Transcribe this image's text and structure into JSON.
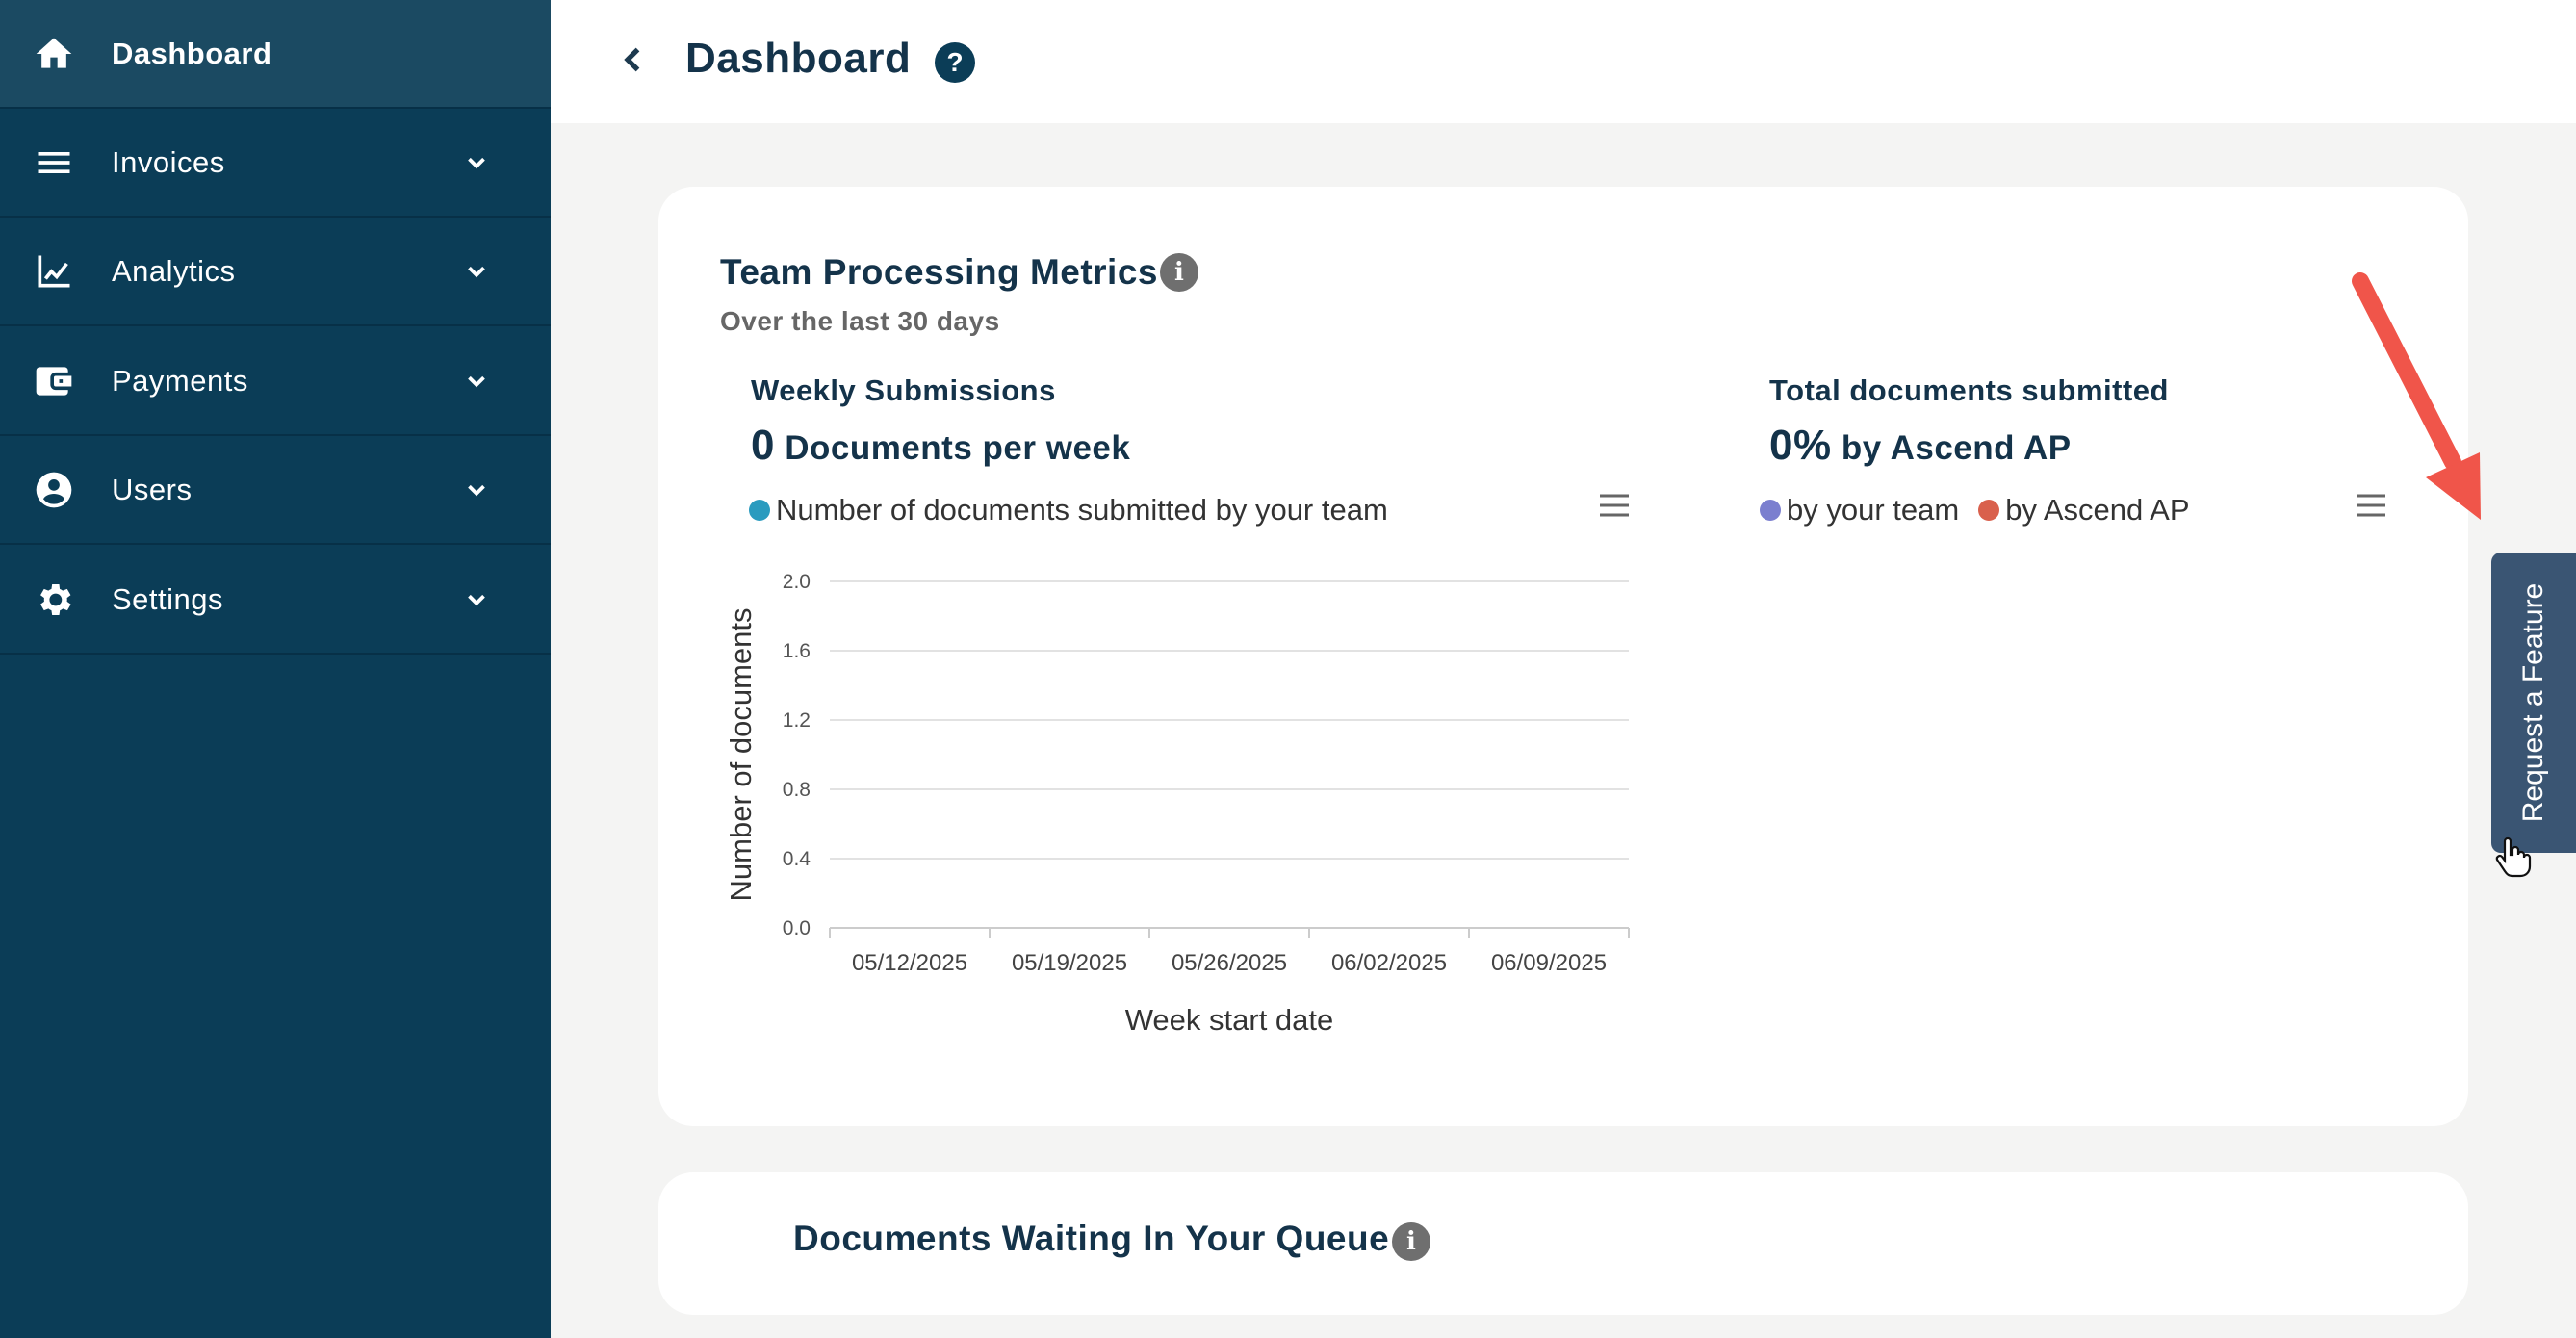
{
  "sidebar": {
    "items": [
      {
        "label": "Dashboard",
        "icon": "home-icon",
        "active": true
      },
      {
        "label": "Invoices",
        "icon": "list-icon"
      },
      {
        "label": "Analytics",
        "icon": "line-chart-icon"
      },
      {
        "label": "Payments",
        "icon": "wallet-icon"
      },
      {
        "label": "Users",
        "icon": "user-circle-icon"
      },
      {
        "label": "Settings",
        "icon": "gear-icon"
      }
    ]
  },
  "header": {
    "title": "Dashboard",
    "help": "?"
  },
  "metrics": {
    "title": "Team Processing Metrics",
    "info": "i",
    "subtitle": "Over the last 30 days",
    "weekly": {
      "title": "Weekly Submissions",
      "value": "0",
      "value_label": "Documents per week",
      "legend": "Number of documents submitted by your team",
      "legend_color": "#2a9bbf"
    },
    "total": {
      "title": "Total documents submitted",
      "value": "0%",
      "value_label": "by Ascend AP",
      "legend_team": "by your team",
      "legend_team_color": "#7b7fcf",
      "legend_ascend": "by Ascend AP",
      "legend_ascend_color": "#d9604c"
    }
  },
  "chart_data": {
    "type": "line",
    "title": "",
    "categories": [
      "05/12/2025",
      "05/19/2025",
      "05/26/2025",
      "06/02/2025",
      "06/09/2025"
    ],
    "series": [
      {
        "name": "Number of documents submitted by your team",
        "values": [
          0,
          0,
          0,
          0,
          0
        ]
      }
    ],
    "xlabel": "Week start date",
    "ylabel": "Number of documents",
    "ylim": [
      0,
      2.0
    ],
    "yticks": [
      "0.0",
      "0.4",
      "0.8",
      "1.2",
      "1.6",
      "2.0"
    ],
    "grid": true
  },
  "queue": {
    "title": "Documents Waiting In Your Queue",
    "info": "i"
  },
  "feature_tab": {
    "label": "Request a Feature"
  },
  "colors": {
    "sidebar": "#0b3d57",
    "accent_arrow": "#f0554a"
  }
}
